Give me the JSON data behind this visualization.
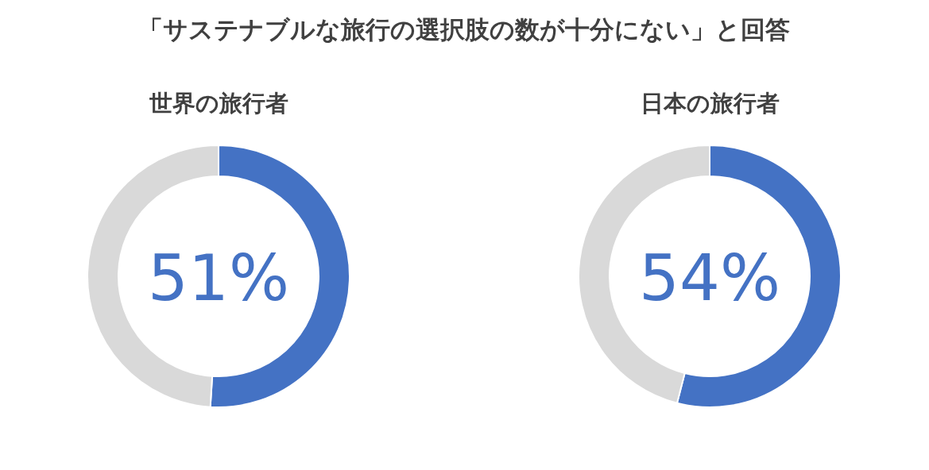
{
  "chart_data": [
    {
      "type": "donut",
      "title": "「サステナブルな旅行の選択肢の数が十分にない」と回答",
      "subtitle": "世界の旅行者",
      "categories": [
        null,
        null
      ],
      "values": [
        51,
        49
      ],
      "colors": [
        "#4472c4",
        "#d9d9d9"
      ],
      "value_labels": [
        "51%",
        null
      ]
    },
    {
      "type": "donut",
      "subtitle": "日本の旅行者",
      "categories": [
        null,
        null
      ],
      "values": [
        54,
        46
      ],
      "colors": [
        "#4472c4",
        "#d9d9d9"
      ],
      "value_labels": [
        "54%",
        null
      ]
    }
  ]
}
